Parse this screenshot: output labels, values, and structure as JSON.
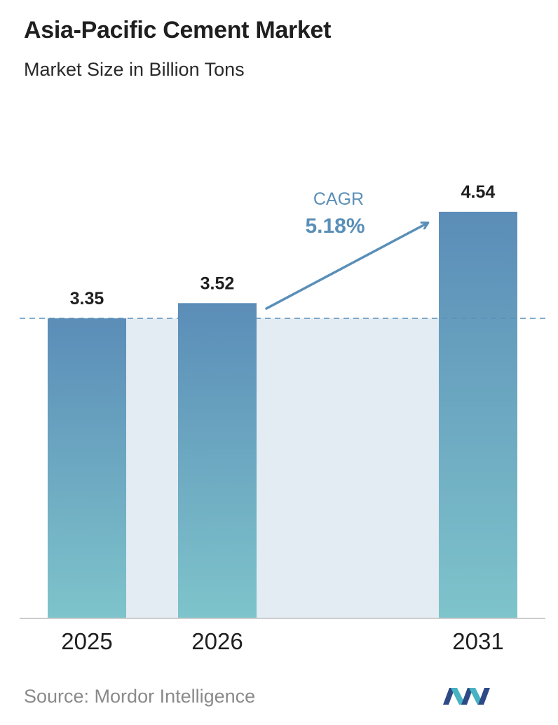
{
  "header": {
    "title": "Asia-Pacific Cement Market",
    "subtitle": "Market Size in Billion Tons"
  },
  "chart_data": {
    "type": "bar",
    "title": "Asia-Pacific Cement Market",
    "subtitle": "Market Size in Billion Tons",
    "categories": [
      "2025",
      "2026",
      "2031"
    ],
    "values": [
      3.35,
      3.52,
      4.54
    ],
    "data_labels": [
      "3.35",
      "3.52",
      "4.54"
    ],
    "ylim": [
      0,
      4.54
    ],
    "grid": false,
    "reference_line_value": 3.35,
    "annotation": {
      "label": "CAGR",
      "value": "5.18%"
    }
  },
  "colors": {
    "bar_top": "#5b8db8",
    "bar_bottom": "#7ec4cb",
    "band": "#e3ebf3",
    "accent": "#5a8fb8",
    "axis": "#cccccc"
  },
  "footer": {
    "source": "Source:  Mordor Intelligence",
    "logo_icon": "mordor-intelligence-logo-icon"
  }
}
